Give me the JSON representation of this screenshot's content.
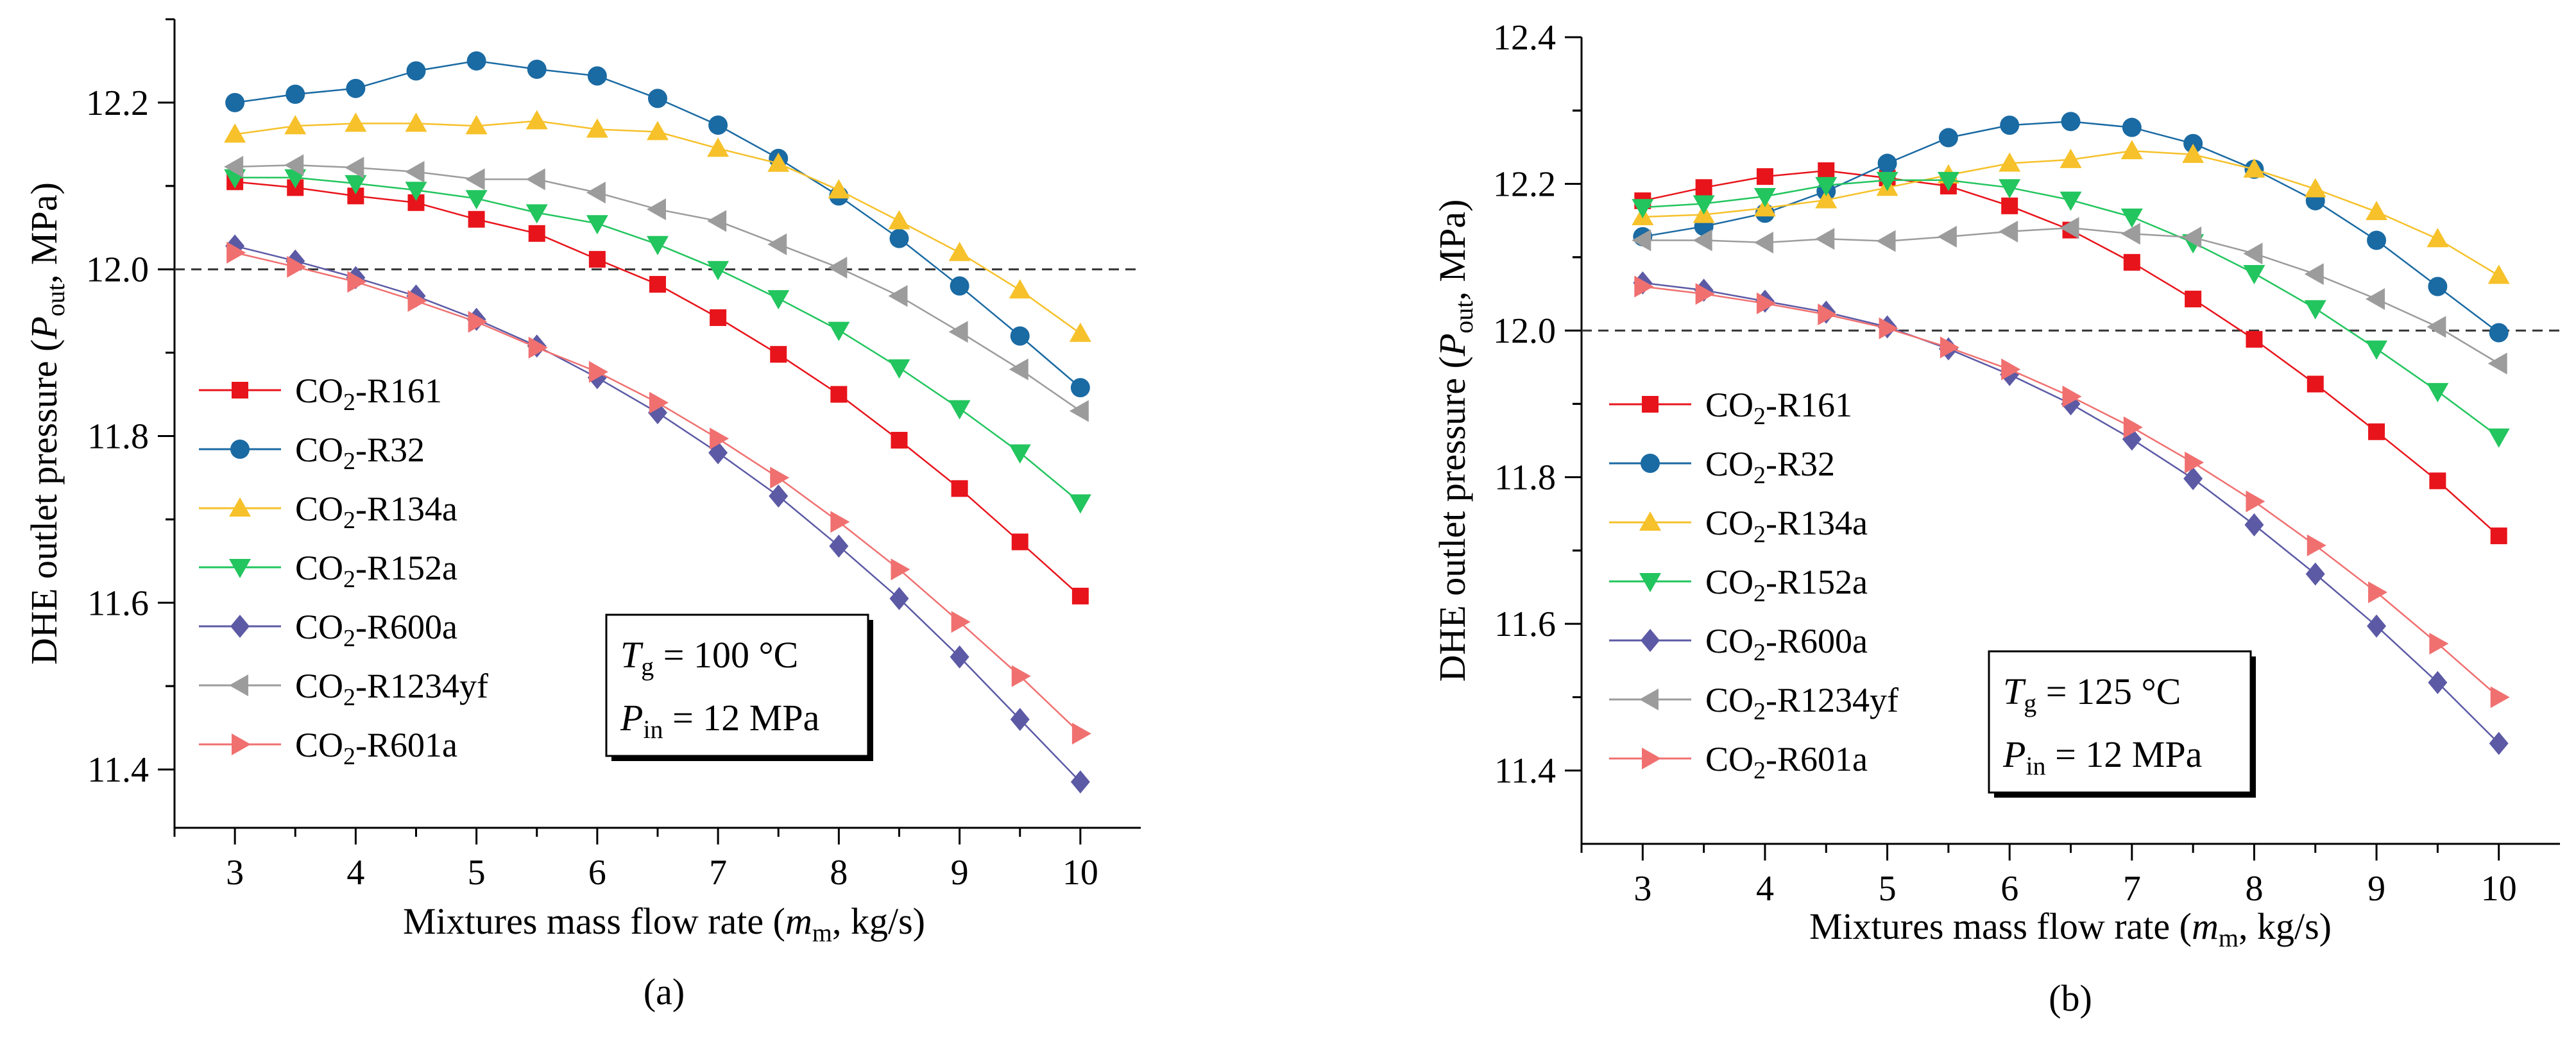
{
  "colors": {
    "CO2-R161": "#e8141b",
    "CO2-R32": "#1a6aa3",
    "CO2-R134a": "#f6c12a",
    "CO2-R152a": "#22c55e",
    "CO2-R600a": "#5c5aa5",
    "CO2-R1234yf": "#9c9c9c",
    "CO2-R601a": "#f07070"
  },
  "chart_data": [
    {
      "type": "line",
      "panel_label": "(a)",
      "xlabel": {
        "prefix": "Mixtures mass flow rate (",
        "var": "m",
        "sub": "m",
        "suffix": ", kg/s)"
      },
      "ylabel": {
        "prefix": "DHE outlet pressure (",
        "var": "P",
        "sub": "out",
        "suffix": ", MPa)"
      },
      "x": [
        3,
        3.5,
        4,
        4.5,
        5,
        5.5,
        6,
        6.5,
        7,
        7.5,
        8,
        8.5,
        9,
        9.5,
        10
      ],
      "xlim": [
        2.5,
        10.5
      ],
      "ylim": [
        11.33,
        12.3
      ],
      "xticks": [
        "3",
        "4",
        "5",
        "6",
        "7",
        "8",
        "9",
        "10"
      ],
      "yticks": [
        "11.4",
        "11.6",
        "11.8",
        "12.0",
        "12.2"
      ],
      "reference_line": 12.0,
      "conditions": [
        {
          "var": "T",
          "sub": "g",
          "text": " = 100 °C"
        },
        {
          "var": "P",
          "sub": "in",
          "text": " = 12 MPa"
        }
      ],
      "series": [
        {
          "name": "CO2-R161",
          "label_pre": "CO",
          "label_sub": "2",
          "label_post": "-R161",
          "marker": "square",
          "values": [
            12.105,
            12.098,
            12.088,
            12.08,
            12.06,
            12.043,
            12.012,
            11.982,
            11.942,
            11.898,
            11.85,
            11.795,
            11.737,
            11.673,
            11.608
          ]
        },
        {
          "name": "CO2-R32",
          "label_pre": "CO",
          "label_sub": "2",
          "label_post": "-R32",
          "marker": "circle",
          "values": [
            12.2,
            12.21,
            12.217,
            12.238,
            12.25,
            12.24,
            12.232,
            12.205,
            12.173,
            12.133,
            12.088,
            12.037,
            11.98,
            11.92,
            11.858
          ]
        },
        {
          "name": "CO2-R134a",
          "label_pre": "CO",
          "label_sub": "2",
          "label_post": "-R134a",
          "marker": "triangle-up",
          "values": [
            12.162,
            12.172,
            12.175,
            12.175,
            12.172,
            12.178,
            12.168,
            12.165,
            12.145,
            12.127,
            12.095,
            12.058,
            12.02,
            11.975,
            11.923
          ]
        },
        {
          "name": "CO2-R152a",
          "label_pre": "CO",
          "label_sub": "2",
          "label_post": "-R152a",
          "marker": "triangle-down",
          "values": [
            12.11,
            12.11,
            12.103,
            12.095,
            12.085,
            12.068,
            12.055,
            12.03,
            12.0,
            11.965,
            11.927,
            11.882,
            11.833,
            11.78,
            11.72
          ]
        },
        {
          "name": "CO2-R600a",
          "label_pre": "CO",
          "label_sub": "2",
          "label_post": "-R600a",
          "marker": "diamond",
          "values": [
            12.028,
            12.01,
            11.99,
            11.968,
            11.94,
            11.908,
            11.87,
            11.828,
            11.78,
            11.728,
            11.668,
            11.605,
            11.535,
            11.46,
            11.385
          ]
        },
        {
          "name": "CO2-R1234yf",
          "label_pre": "CO",
          "label_sub": "2",
          "label_post": "-R1234yf",
          "marker": "triangle-left",
          "values": [
            12.123,
            12.125,
            12.122,
            12.117,
            12.108,
            12.108,
            12.092,
            12.072,
            12.058,
            12.03,
            12.002,
            11.968,
            11.925,
            11.88,
            11.83
          ]
        },
        {
          "name": "CO2-R601a",
          "label_pre": "CO",
          "label_sub": "2",
          "label_post": "-R601a",
          "marker": "triangle-right",
          "values": [
            12.02,
            12.003,
            11.985,
            11.962,
            11.937,
            11.906,
            11.877,
            11.84,
            11.797,
            11.75,
            11.697,
            11.64,
            11.577,
            11.512,
            11.443
          ]
        }
      ]
    },
    {
      "type": "line",
      "panel_label": "(b)",
      "xlabel": {
        "prefix": "Mixtures mass flow rate (",
        "var": "m",
        "sub": "m",
        "suffix": ", kg/s)"
      },
      "ylabel": {
        "prefix": "DHE outlet pressure (",
        "var": "P",
        "sub": "out",
        "suffix": ", MPa)"
      },
      "x": [
        3,
        3.5,
        4,
        4.5,
        5,
        5.5,
        6,
        6.5,
        7,
        7.5,
        8,
        8.5,
        9,
        9.5,
        10
      ],
      "xlim": [
        2.5,
        10.5
      ],
      "ylim": [
        11.3,
        12.4
      ],
      "xticks": [
        "3",
        "4",
        "5",
        "6",
        "7",
        "8",
        "9",
        "10"
      ],
      "yticks": [
        "11.4",
        "11.6",
        "11.8",
        "12.0",
        "12.2",
        "12.4"
      ],
      "reference_line": 12.0,
      "conditions": [
        {
          "var": "T",
          "sub": "g",
          "text": " = 125 °C"
        },
        {
          "var": "P",
          "sub": "in",
          "text": " = 12 MPa"
        }
      ],
      "series": [
        {
          "name": "CO2-R161",
          "label_pre": "CO",
          "label_sub": "2",
          "label_post": "-R161",
          "marker": "square",
          "values": [
            12.177,
            12.195,
            12.21,
            12.218,
            12.208,
            12.197,
            12.17,
            12.137,
            12.093,
            12.043,
            11.988,
            11.927,
            11.862,
            11.795,
            11.72
          ]
        },
        {
          "name": "CO2-R32",
          "label_pre": "CO",
          "label_sub": "2",
          "label_post": "-R32",
          "marker": "circle",
          "values": [
            12.128,
            12.142,
            12.16,
            12.19,
            12.228,
            12.263,
            12.28,
            12.285,
            12.277,
            12.255,
            12.22,
            12.177,
            12.123,
            12.06,
            11.997
          ]
        },
        {
          "name": "CO2-R134a",
          "label_pre": "CO",
          "label_sub": "2",
          "label_post": "-R134a",
          "marker": "triangle-up",
          "values": [
            12.155,
            12.158,
            12.167,
            12.178,
            12.195,
            12.212,
            12.228,
            12.233,
            12.245,
            12.24,
            12.22,
            12.193,
            12.162,
            12.125,
            12.075
          ]
        },
        {
          "name": "CO2-R152a",
          "label_pre": "CO",
          "label_sub": "2",
          "label_post": "-R152a",
          "marker": "triangle-down",
          "values": [
            12.168,
            12.173,
            12.183,
            12.198,
            12.205,
            12.205,
            12.195,
            12.178,
            12.155,
            12.12,
            12.078,
            12.03,
            11.975,
            11.917,
            11.855
          ]
        },
        {
          "name": "CO2-R600a",
          "label_pre": "CO",
          "label_sub": "2",
          "label_post": "-R600a",
          "marker": "diamond",
          "values": [
            12.065,
            12.055,
            12.04,
            12.025,
            12.005,
            11.975,
            11.94,
            11.9,
            11.852,
            11.798,
            11.735,
            11.668,
            11.597,
            11.52,
            11.437
          ]
        },
        {
          "name": "CO2-R1234yf",
          "label_pre": "CO",
          "label_sub": "2",
          "label_post": "-R1234yf",
          "marker": "triangle-left",
          "values": [
            12.123,
            12.123,
            12.12,
            12.125,
            12.122,
            12.128,
            12.135,
            12.14,
            12.132,
            12.127,
            12.105,
            12.077,
            12.043,
            12.005,
            11.955
          ]
        },
        {
          "name": "CO2-R601a",
          "label_pre": "CO",
          "label_sub": "2",
          "label_post": "-R601a",
          "marker": "triangle-right",
          "values": [
            12.06,
            12.05,
            12.037,
            12.022,
            12.003,
            11.977,
            11.947,
            11.91,
            11.868,
            11.82,
            11.767,
            11.707,
            11.643,
            11.573,
            11.5
          ]
        }
      ]
    }
  ]
}
